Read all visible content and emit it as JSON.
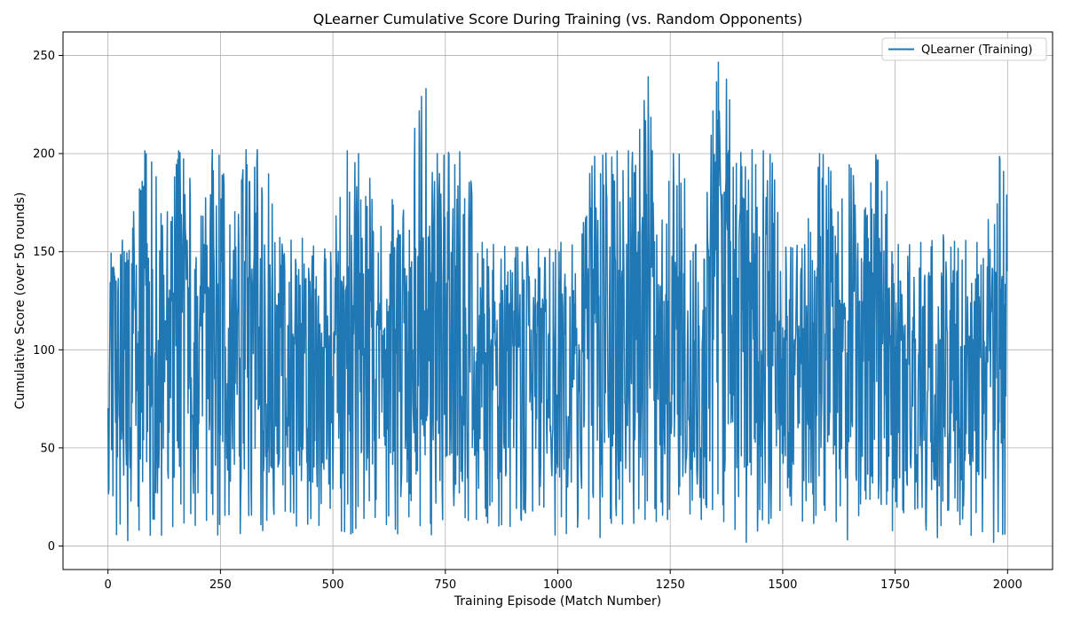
{
  "chart_data": {
    "type": "line",
    "title": "QLearner Cumulative Score During Training (vs. Random Opponents)",
    "xlabel": "Training Episode (Match Number)",
    "ylabel": "Cumulative Score (over 50 rounds)",
    "xlim": [
      -100,
      2100
    ],
    "ylim": [
      -12,
      262
    ],
    "xticks": [
      0,
      250,
      500,
      750,
      1000,
      1250,
      1500,
      1750,
      2000
    ],
    "yticks": [
      0,
      50,
      100,
      150,
      200,
      250
    ],
    "grid": true,
    "legend_position": "top-right",
    "series": [
      {
        "name": "QLearner (Training)",
        "color": "#1f77b4",
        "episodes": 2000,
        "envelope_x": [
          0,
          25,
          50,
          75,
          100,
          125,
          150,
          175,
          200,
          225,
          250,
          275,
          300,
          325,
          350,
          375,
          400,
          425,
          450,
          475,
          500,
          525,
          550,
          575,
          600,
          625,
          650,
          675,
          700,
          725,
          750,
          775,
          800,
          825,
          850,
          875,
          900,
          925,
          950,
          975,
          1000,
          1025,
          1050,
          1075,
          1100,
          1125,
          1150,
          1175,
          1200,
          1225,
          1250,
          1275,
          1300,
          1325,
          1350,
          1375,
          1400,
          1425,
          1450,
          1475,
          1500,
          1525,
          1550,
          1575,
          1600,
          1625,
          1650,
          1675,
          1700,
          1725,
          1750,
          1775,
          1800,
          1825,
          1850,
          1875,
          1900,
          1925,
          1950,
          1975,
          2000
        ],
        "envelope_max": [
          147,
          155,
          158,
          202,
          200,
          158,
          202,
          200,
          155,
          202,
          202,
          158,
          202,
          202,
          202,
          158,
          155,
          158,
          154,
          150,
          155,
          202,
          200,
          200,
          155,
          183,
          160,
          200,
          246,
          200,
          200,
          202,
          198,
          155,
          154,
          153,
          152,
          153,
          152,
          150,
          155,
          154,
          152,
          198,
          200,
          201,
          202,
          200,
          244,
          153,
          200,
          200,
          154,
          153,
          250,
          238,
          200,
          202,
          202,
          200,
          152,
          153,
          154,
          200,
          200,
          168,
          200,
          160,
          200,
          198,
          154,
          153,
          155,
          154,
          160,
          155,
          156,
          155,
          154,
          198,
          200
        ],
        "envelope_min": [
          8,
          5,
          2,
          10,
          4,
          6,
          11,
          12,
          10,
          14,
          3,
          20,
          2,
          20,
          4,
          20,
          17,
          8,
          12,
          10,
          22,
          3,
          8,
          16,
          14,
          10,
          5,
          18,
          8,
          5,
          16,
          22,
          12,
          14,
          11,
          10,
          10,
          14,
          19,
          20,
          1,
          8,
          10,
          15,
          1,
          15,
          10,
          12,
          14,
          12,
          14,
          30,
          12,
          14,
          20,
          10,
          8,
          0,
          10,
          12,
          20,
          21,
          10,
          12,
          20,
          10,
          1,
          20,
          25,
          20,
          4,
          21,
          18,
          5,
          4,
          23,
          7,
          5,
          8,
          0,
          8
        ]
      }
    ]
  }
}
